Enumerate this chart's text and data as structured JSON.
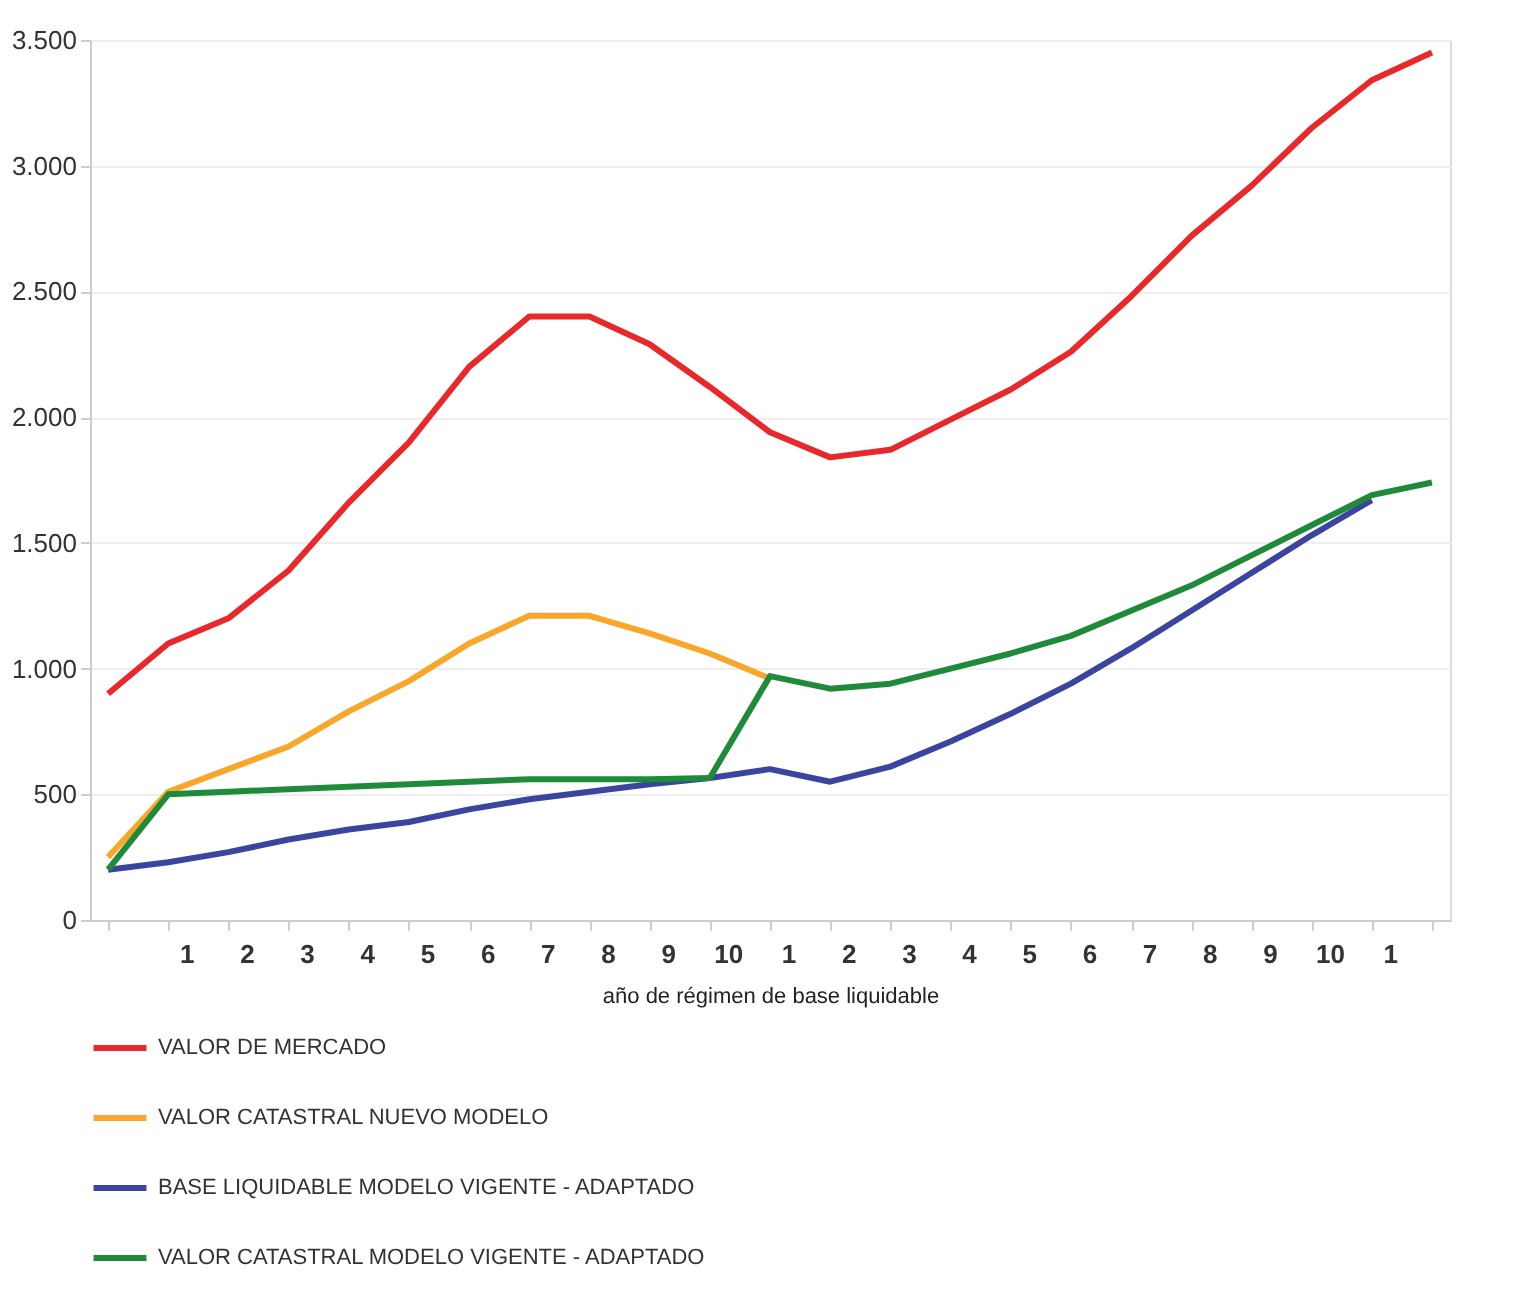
{
  "chart_data": {
    "type": "line",
    "xlabel": "año de régimen de base liquidable",
    "categories": [
      null,
      "1",
      "2",
      "3",
      "4",
      "5",
      "6",
      "7",
      "8",
      "9",
      "10",
      "1",
      "2",
      "3",
      "4",
      "5",
      "6",
      "7",
      "8",
      "9",
      "10",
      "1",
      null
    ],
    "ylim": [
      0,
      3500
    ],
    "yticks": [
      {
        "value": 0,
        "label": "0"
      },
      {
        "value": 500,
        "label": "500"
      },
      {
        "value": 1000,
        "label": "1.000"
      },
      {
        "value": 1500,
        "label": "1.500"
      },
      {
        "value": 2000,
        "label": "2.000"
      },
      {
        "value": 2500,
        "label": "2.500"
      },
      {
        "value": 3000,
        "label": "3.000"
      },
      {
        "value": 3500,
        "label": "3.500"
      }
    ],
    "grid": "y",
    "legend": "bottom",
    "marker": "none",
    "line_style": "solid",
    "series": [
      {
        "name": "VALOR DE MERCADO",
        "color": "#e8282b",
        "values": [
          900,
          1100,
          1200,
          1390,
          1660,
          1900,
          2200,
          2400,
          2400,
          2290,
          2120,
          1940,
          1840,
          1870,
          1990,
          2110,
          2260,
          2480,
          2720,
          2920,
          3150,
          3340,
          3450
        ]
      },
      {
        "name": "VALOR CATASTRAL NUEVO MODELO",
        "color": "#f9a72b",
        "values": [
          250,
          510,
          600,
          690,
          830,
          950,
          1100,
          1210,
          1210,
          1140,
          1060,
          960,
          null,
          null,
          null,
          null,
          null,
          null,
          null,
          null,
          null,
          null,
          null
        ]
      },
      {
        "name": "BASE LIQUIDABLE MODELO VIGENTE - ADAPTADO",
        "color": "#3b45a0",
        "values": [
          200,
          230,
          270,
          320,
          360,
          390,
          440,
          480,
          510,
          540,
          565,
          600,
          550,
          610,
          710,
          820,
          940,
          1080,
          1230,
          1380,
          1530,
          1670,
          null
        ]
      },
      {
        "name": "VALOR CATASTRAL MODELO VIGENTE - ADAPTADO",
        "color": "#1f8a3a",
        "values": [
          200,
          500,
          510,
          520,
          530,
          540,
          550,
          560,
          560,
          560,
          565,
          970,
          920,
          940,
          1000,
          1060,
          1130,
          1230,
          1330,
          1450,
          1570,
          1690,
          1740
        ]
      }
    ]
  }
}
